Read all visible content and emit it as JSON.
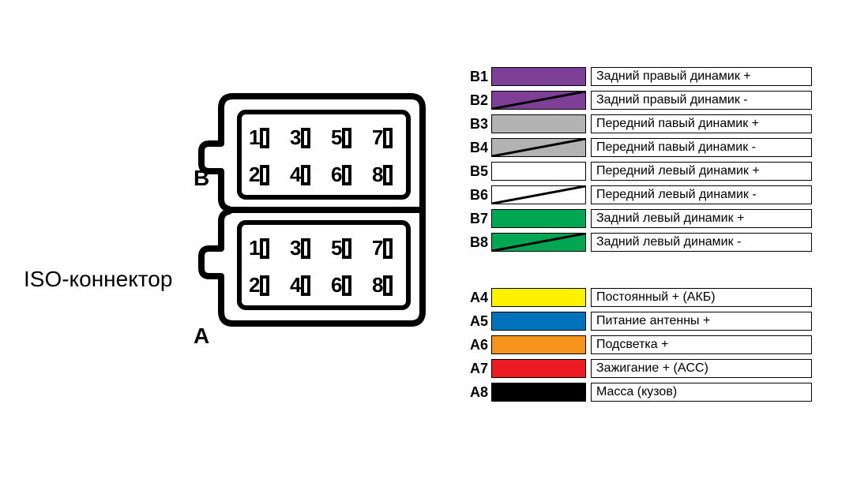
{
  "title": "ISO-коннектор",
  "blocks": {
    "b_label": "B",
    "a_label": "A"
  },
  "pins": {
    "row": [
      "1",
      "2",
      "3",
      "4",
      "5",
      "6",
      "7",
      "8"
    ]
  },
  "speakers_section": [
    {
      "id": "B1",
      "color": "#7e3f98",
      "stripe": false,
      "desc": "Задний правый динамик +"
    },
    {
      "id": "B2",
      "color": "#7e3f98",
      "stripe": true,
      "desc": "Задний правый динамик -"
    },
    {
      "id": "B3",
      "color": "#b3b3b3",
      "stripe": false,
      "desc": "Передний павый динамик +"
    },
    {
      "id": "B4",
      "color": "#b3b3b3",
      "stripe": true,
      "desc": "Передний павый динамик -"
    },
    {
      "id": "B5",
      "color": "#ffffff",
      "stripe": false,
      "desc": "Передний левый динамик +"
    },
    {
      "id": "B6",
      "color": "#ffffff",
      "stripe": true,
      "desc": "Передний левый динамик -"
    },
    {
      "id": "B7",
      "color": "#00a651",
      "stripe": false,
      "desc": "Задний левый динамик +"
    },
    {
      "id": "B8",
      "color": "#00a651",
      "stripe": true,
      "desc": "Задний левый динамик -"
    }
  ],
  "power_section": [
    {
      "id": "A4",
      "color": "#fff200",
      "desc": "Постоянный + (АКБ)"
    },
    {
      "id": "A5",
      "color": "#0072bc",
      "desc": "Питание антенны +"
    },
    {
      "id": "A6",
      "color": "#f7941e",
      "desc": "Подсветка +"
    },
    {
      "id": "A7",
      "color": "#ed1c24",
      "desc": "Зажигание + (ACC)"
    },
    {
      "id": "A8",
      "color": "#000000",
      "desc": "Масса (кузов)"
    }
  ],
  "styles": {
    "border_color": "#000000",
    "stripe_color": "#000000",
    "bg_color": "#ffffff",
    "font_family": "Arial",
    "pin_font_size": 26,
    "legend_font_size": 16
  }
}
